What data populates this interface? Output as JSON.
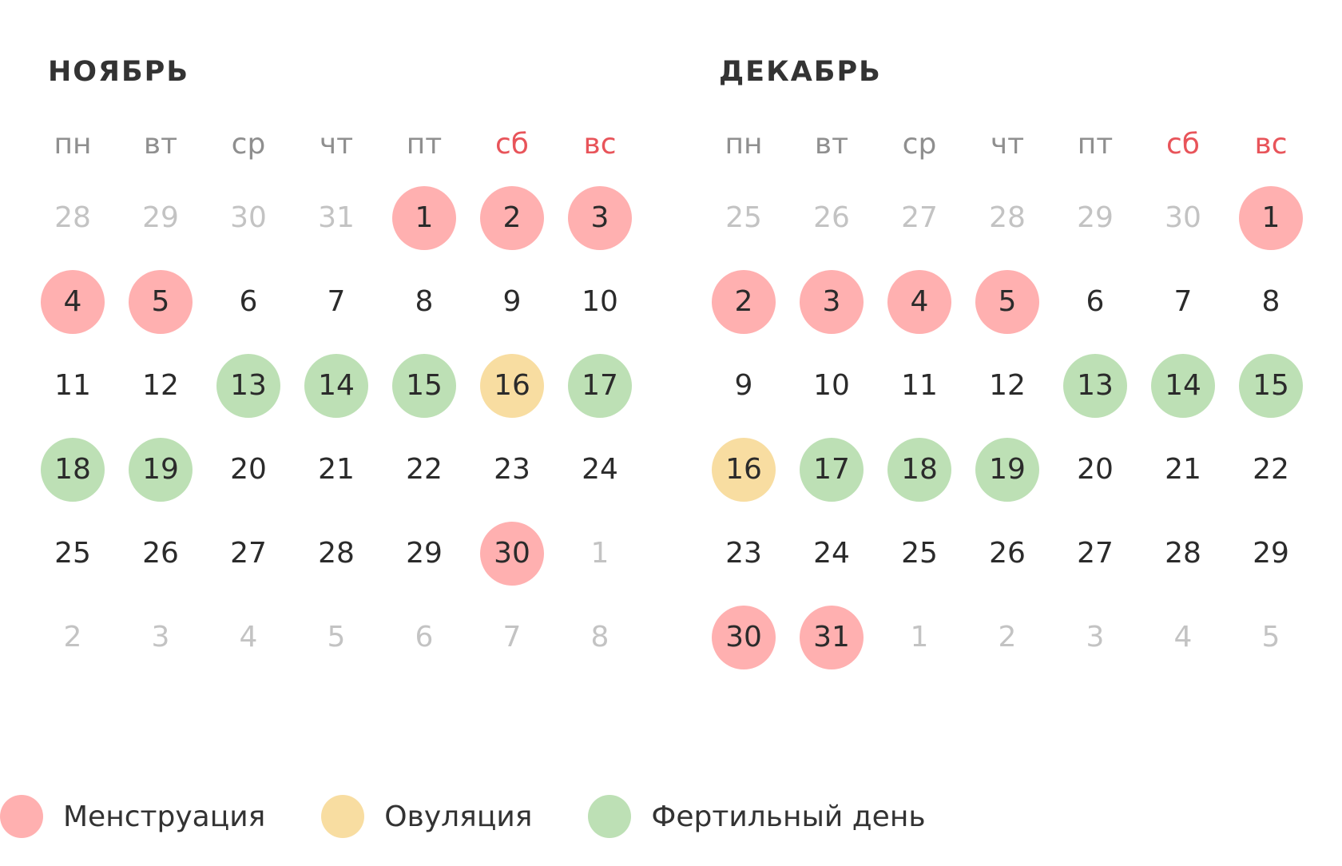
{
  "weekdays": [
    {
      "label": "пн",
      "weekend": false
    },
    {
      "label": "вт",
      "weekend": false
    },
    {
      "label": "ср",
      "weekend": false
    },
    {
      "label": "чт",
      "weekend": false
    },
    {
      "label": "пт",
      "weekend": false
    },
    {
      "label": "сб",
      "weekend": true
    },
    {
      "label": "вс",
      "weekend": true
    }
  ],
  "colors": {
    "menstruation": "#ffb0b0",
    "ovulation": "#f8dda1",
    "fertile": "#bde0b5",
    "weekend_text": "#e8545a",
    "weekday_text": "#8f8f8f",
    "other_month_text": "#c3c3c3",
    "day_text": "#2b2b2b"
  },
  "months": [
    {
      "id": "november",
      "title": "НОЯБРЬ",
      "weeks": [
        [
          {
            "n": "28",
            "other": true,
            "type": ""
          },
          {
            "n": "29",
            "other": true,
            "type": ""
          },
          {
            "n": "30",
            "other": true,
            "type": ""
          },
          {
            "n": "31",
            "other": true,
            "type": ""
          },
          {
            "n": "1",
            "other": false,
            "type": "menstruation"
          },
          {
            "n": "2",
            "other": false,
            "type": "menstruation"
          },
          {
            "n": "3",
            "other": false,
            "type": "menstruation"
          }
        ],
        [
          {
            "n": "4",
            "other": false,
            "type": "menstruation"
          },
          {
            "n": "5",
            "other": false,
            "type": "menstruation"
          },
          {
            "n": "6",
            "other": false,
            "type": ""
          },
          {
            "n": "7",
            "other": false,
            "type": ""
          },
          {
            "n": "8",
            "other": false,
            "type": ""
          },
          {
            "n": "9",
            "other": false,
            "type": ""
          },
          {
            "n": "10",
            "other": false,
            "type": ""
          }
        ],
        [
          {
            "n": "11",
            "other": false,
            "type": ""
          },
          {
            "n": "12",
            "other": false,
            "type": ""
          },
          {
            "n": "13",
            "other": false,
            "type": "fertile"
          },
          {
            "n": "14",
            "other": false,
            "type": "fertile"
          },
          {
            "n": "15",
            "other": false,
            "type": "fertile"
          },
          {
            "n": "16",
            "other": false,
            "type": "ovulation"
          },
          {
            "n": "17",
            "other": false,
            "type": "fertile"
          }
        ],
        [
          {
            "n": "18",
            "other": false,
            "type": "fertile"
          },
          {
            "n": "19",
            "other": false,
            "type": "fertile"
          },
          {
            "n": "20",
            "other": false,
            "type": ""
          },
          {
            "n": "21",
            "other": false,
            "type": ""
          },
          {
            "n": "22",
            "other": false,
            "type": ""
          },
          {
            "n": "23",
            "other": false,
            "type": ""
          },
          {
            "n": "24",
            "other": false,
            "type": ""
          }
        ],
        [
          {
            "n": "25",
            "other": false,
            "type": ""
          },
          {
            "n": "26",
            "other": false,
            "type": ""
          },
          {
            "n": "27",
            "other": false,
            "type": ""
          },
          {
            "n": "28",
            "other": false,
            "type": ""
          },
          {
            "n": "29",
            "other": false,
            "type": ""
          },
          {
            "n": "30",
            "other": false,
            "type": "menstruation"
          },
          {
            "n": "1",
            "other": true,
            "type": ""
          }
        ],
        [
          {
            "n": "2",
            "other": true,
            "type": ""
          },
          {
            "n": "3",
            "other": true,
            "type": ""
          },
          {
            "n": "4",
            "other": true,
            "type": ""
          },
          {
            "n": "5",
            "other": true,
            "type": ""
          },
          {
            "n": "6",
            "other": true,
            "type": ""
          },
          {
            "n": "7",
            "other": true,
            "type": ""
          },
          {
            "n": "8",
            "other": true,
            "type": ""
          }
        ]
      ]
    },
    {
      "id": "december",
      "title": "ДЕКАБРЬ",
      "weeks": [
        [
          {
            "n": "25",
            "other": true,
            "type": ""
          },
          {
            "n": "26",
            "other": true,
            "type": ""
          },
          {
            "n": "27",
            "other": true,
            "type": ""
          },
          {
            "n": "28",
            "other": true,
            "type": ""
          },
          {
            "n": "29",
            "other": true,
            "type": ""
          },
          {
            "n": "30",
            "other": true,
            "type": ""
          },
          {
            "n": "1",
            "other": false,
            "type": "menstruation"
          }
        ],
        [
          {
            "n": "2",
            "other": false,
            "type": "menstruation"
          },
          {
            "n": "3",
            "other": false,
            "type": "menstruation"
          },
          {
            "n": "4",
            "other": false,
            "type": "menstruation"
          },
          {
            "n": "5",
            "other": false,
            "type": "menstruation"
          },
          {
            "n": "6",
            "other": false,
            "type": ""
          },
          {
            "n": "7",
            "other": false,
            "type": ""
          },
          {
            "n": "8",
            "other": false,
            "type": ""
          }
        ],
        [
          {
            "n": "9",
            "other": false,
            "type": ""
          },
          {
            "n": "10",
            "other": false,
            "type": ""
          },
          {
            "n": "11",
            "other": false,
            "type": ""
          },
          {
            "n": "12",
            "other": false,
            "type": ""
          },
          {
            "n": "13",
            "other": false,
            "type": "fertile"
          },
          {
            "n": "14",
            "other": false,
            "type": "fertile"
          },
          {
            "n": "15",
            "other": false,
            "type": "fertile"
          }
        ],
        [
          {
            "n": "16",
            "other": false,
            "type": "ovulation"
          },
          {
            "n": "17",
            "other": false,
            "type": "fertile"
          },
          {
            "n": "18",
            "other": false,
            "type": "fertile"
          },
          {
            "n": "19",
            "other": false,
            "type": "fertile"
          },
          {
            "n": "20",
            "other": false,
            "type": ""
          },
          {
            "n": "21",
            "other": false,
            "type": ""
          },
          {
            "n": "22",
            "other": false,
            "type": ""
          }
        ],
        [
          {
            "n": "23",
            "other": false,
            "type": ""
          },
          {
            "n": "24",
            "other": false,
            "type": ""
          },
          {
            "n": "25",
            "other": false,
            "type": ""
          },
          {
            "n": "26",
            "other": false,
            "type": ""
          },
          {
            "n": "27",
            "other": false,
            "type": ""
          },
          {
            "n": "28",
            "other": false,
            "type": ""
          },
          {
            "n": "29",
            "other": false,
            "type": ""
          }
        ],
        [
          {
            "n": "30",
            "other": false,
            "type": "menstruation"
          },
          {
            "n": "31",
            "other": false,
            "type": "menstruation"
          },
          {
            "n": "1",
            "other": true,
            "type": ""
          },
          {
            "n": "2",
            "other": true,
            "type": ""
          },
          {
            "n": "3",
            "other": true,
            "type": ""
          },
          {
            "n": "4",
            "other": true,
            "type": ""
          },
          {
            "n": "5",
            "other": true,
            "type": ""
          }
        ]
      ]
    }
  ],
  "legend": [
    {
      "type": "menstruation",
      "label": "Менструация"
    },
    {
      "type": "ovulation",
      "label": "Овуляция"
    },
    {
      "type": "fertile",
      "label": "Фертильный день"
    }
  ]
}
